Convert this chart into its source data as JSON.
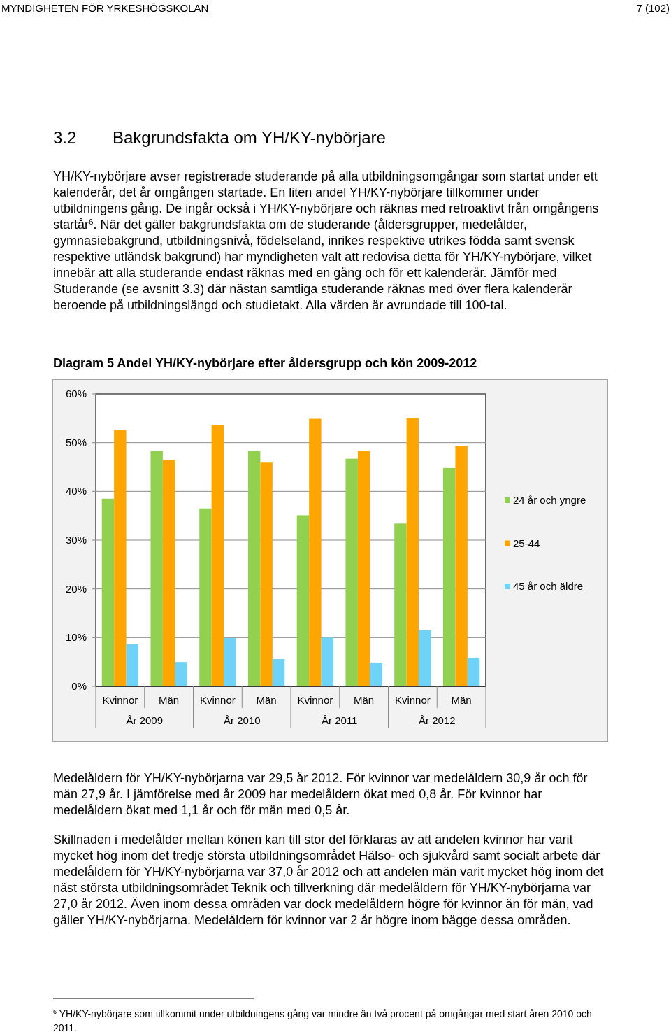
{
  "chart_data": {
    "type": "bar",
    "title": "Diagram 5 Andel YH/KY-nybörjare efter åldersgrupp och kön 2009-2012",
    "categories": [
      "Kvinnor",
      "Män",
      "Kvinnor",
      "Män",
      "Kvinnor",
      "Män",
      "Kvinnor",
      "Män"
    ],
    "series": [
      {
        "name": "24 år och yngre",
        "color": "#92d050",
        "values": [
          38.5,
          48.3,
          36.5,
          48.3,
          35.1,
          46.7,
          33.4,
          44.8
        ]
      },
      {
        "name": "25-44",
        "color": "#ffa500",
        "values": [
          52.6,
          46.5,
          53.6,
          45.9,
          54.9,
          48.3,
          55.0,
          49.3
        ]
      },
      {
        "name": "45 år och äldre",
        "color": "#6fd3f7",
        "values": [
          8.7,
          5.0,
          9.9,
          5.6,
          10.0,
          4.9,
          11.5,
          5.9
        ]
      }
    ],
    "ylim": [
      0,
      60
    ],
    "yticks": [
      {
        "value": 0,
        "label": "0%"
      },
      {
        "value": 10,
        "label": "10%"
      },
      {
        "value": 20,
        "label": "20%"
      },
      {
        "value": 30,
        "label": "30%"
      },
      {
        "value": 40,
        "label": "40%"
      },
      {
        "value": 50,
        "label": "50%"
      },
      {
        "value": 60,
        "label": "60%"
      }
    ],
    "grid": "y",
    "legend": "right",
    "annotations": [
      "MYNDIGHETEN FÖR YRKESHÖGSKOLAN",
      "7 (102)",
      "3.2 Bakgrundsfakta om YH/KY-nybörjare",
      "YH/KY-nybörjare avser registrerade studerande på alla utbildningsomgångar som startat under ett kalenderår, det år omgången startade. En liten andel YH/KY-nybörjare tillkommer under utbildningens gång. De ingår också i YH/KY-nybörjare och räknas med retroaktivt från omgångens startår$^{6}$. När det gäller bakgrundsfakta om de studerande (åldersgrupper, medelålder, gymnasiebakgrund, utbildningsnivå, födelseland, inrikes respektive utrikes födda samt svensk respektive utländsk bakgrund) har myndigheten valt att redovisa detta för YH/KY-nybörjare, vilket innebär att alla studerande endast räknas med en gång och för ett kalenderår. Jämför med Studerande (se avsnitt 3.3) där nästan samtliga studerande räknas med över flera kalenderår beroende på utbildningslängd och studietakt. Alla värden är avrundade till 100-tal.",
      "År 2009",
      "År 2010",
      "År 2011",
      "År 2012",
      "Medelåldern för YH/KY-nybörjarna var 29,5 år 2012. För kvinnor var medelåldern 30,9 år och för män 27,9 år. I jämförelse med år 2009 har medelåldern ökat med 0,8 år. För kvinnor har medelåldern ökat med 1,1 år och för män med 0,5 år.",
      "Skillnaden i medelålder mellan könen kan till stor del förklaras av att andelen kvinnor har varit mycket hög inom det tredje största utbildningsområdet Hälso- och sjukvård samt socialt arbete där medelåldern för YH/KY-nybörjarna var 37,0 år 2012 och att andelen män varit mycket hög inom det näst största utbildningsområdet Teknik och tillverkning där medelåldern för YH/KY-nybörjarna var 27,0 år 2012. Även inom dessa områden var dock medelåldern högre för kvinnor än för män, vad gäller YH/KY-nybörjarna. Medelåldern för kvinnor var 2 år högre inom bägge dessa områden.",
      "$^{6}$ YH/KY-nybörjare som tillkommit under utbildningens gång var mindre än två procent på omgångar med start åren 2010 och 2011."
    ]
  }
}
